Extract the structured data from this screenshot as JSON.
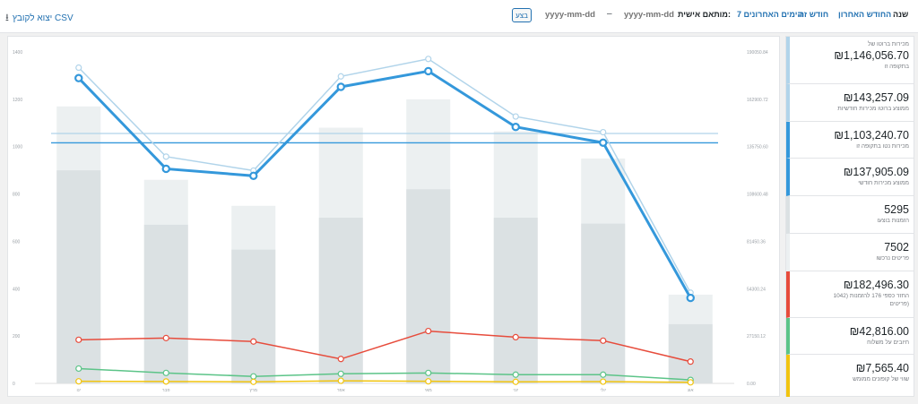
{
  "toolbar": {
    "csv_label": "יצוא לקובץ CSV",
    "apply_label": "בצע",
    "date_from_placeholder": "yyyy-mm-dd",
    "date_to_placeholder": "yyyy-mm-dd",
    "date_separator": "–",
    "custom_label": "מותאם אישית:",
    "tabs": [
      {
        "label": "7 הימים האחרונים",
        "active": false
      },
      {
        "label": "חודש זה",
        "active": false
      },
      {
        "label": "החודש האחרון",
        "active": false
      },
      {
        "label": "שנה",
        "active": true
      }
    ]
  },
  "stats": [
    {
      "value": "₪1,146,056.70",
      "label": "מכירות ברוטו של",
      "label2": "בתקופה זו",
      "color": "#b1d4ea"
    },
    {
      "value": "₪143,257.09",
      "label": "ממוצע ברוטו מכירות חודשיות",
      "color": "#b1d4ea"
    },
    {
      "value": "₪1,103,240.70",
      "label": "מכירות נטו בתקופה זו",
      "color": "#3498db"
    },
    {
      "value": "₪137,905.09",
      "label": "ממוצע מכירות חודשי",
      "color": "#3498db"
    },
    {
      "value": "5295",
      "label": "הזמנות בוצעו",
      "color": "#dbe1e3"
    },
    {
      "value": "7502",
      "label": "פריטים נרכשו",
      "color": "#ecf0f1"
    },
    {
      "value": "₪182,496.30",
      "label": "החזר כספי 176 להזמנות (1042",
      "label2": "פריטים)",
      "color": "#e74c3c"
    },
    {
      "value": "₪42,816.00",
      "label": "חיובים על משלוח",
      "color": "#5cc488"
    },
    {
      "value": "₪7,565.40",
      "label": "שווי של קופונים ממומש",
      "color": "#f1c40f"
    }
  ],
  "chart_data": {
    "type": "bar+line",
    "categories": [
      "ינו",
      "פבר",
      "מרץ",
      "אפר",
      "מאי",
      "יוני",
      "יולי",
      "אוג"
    ],
    "left_axis": {
      "ylim": [
        0,
        1400
      ],
      "ticks": [
        "0",
        "200",
        "400",
        "600",
        "800",
        "1000",
        "1200",
        "1400"
      ]
    },
    "right_axis": {
      "ylim": [
        0,
        190000
      ],
      "ticks": [
        "0.00",
        "27150.12",
        "54300.24",
        "81450.36",
        "108600.48",
        "135750.60",
        "162900.72",
        "190050.84"
      ]
    },
    "series": [
      {
        "name": "פריטים נרכשו",
        "kind": "bar",
        "axis": "left",
        "color": "#ecf0f1",
        "values": [
          1170,
          860,
          750,
          1080,
          1200,
          1065,
          950,
          375
        ]
      },
      {
        "name": "הזמנות בוצעו",
        "kind": "bar",
        "axis": "left",
        "color": "#dbe1e3",
        "values": [
          900,
          670,
          565,
          700,
          820,
          700,
          675,
          250
        ]
      },
      {
        "name": "מכירות ברוטו",
        "kind": "line",
        "axis": "right",
        "color": "#b1d4ea",
        "values": [
          181000,
          130000,
          122000,
          176000,
          186000,
          153000,
          144000,
          52000
        ]
      },
      {
        "name": "מכירות נטו",
        "kind": "line",
        "axis": "right",
        "color": "#3498db",
        "values": [
          175000,
          123000,
          119000,
          170000,
          179000,
          147000,
          138000,
          49000
        ]
      },
      {
        "name": "החזר כספי",
        "kind": "line",
        "axis": "right",
        "color": "#e74c3c",
        "values": [
          25000,
          26000,
          24000,
          14000,
          30000,
          26500,
          24500,
          12500
        ]
      },
      {
        "name": "חיובים על משלוח",
        "kind": "line",
        "axis": "right",
        "color": "#5cc488",
        "values": [
          8500,
          6000,
          4000,
          5500,
          6000,
          5000,
          5000,
          2000
        ]
      },
      {
        "name": "קופונים",
        "kind": "line",
        "axis": "right",
        "color": "#f1c40f",
        "values": [
          1200,
          1100,
          900,
          1500,
          1200,
          900,
          1000,
          600
        ]
      }
    ],
    "averages": [
      {
        "name": "ממוצע ברוטו",
        "axis": "right",
        "color": "#b1d4ea",
        "value": 143257.09
      },
      {
        "name": "ממוצע נטו",
        "axis": "right",
        "color": "#3498db",
        "value": 137905.09
      }
    ]
  }
}
